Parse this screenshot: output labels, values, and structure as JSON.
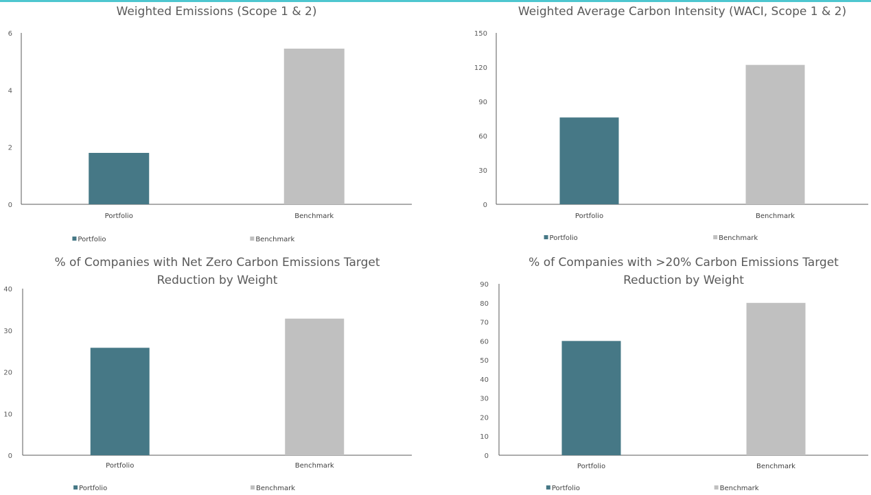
{
  "colors": {
    "portfolio": "#467886",
    "benchmark": "#c0c0c0",
    "accent": "#4ec6cf"
  },
  "chart_data": [
    {
      "type": "bar",
      "title_lines": [
        "Weighted Emissions (Scope 1 & 2)"
      ],
      "categories": [
        "Portfolio",
        "Benchmark"
      ],
      "values": [
        1.8,
        5.45
      ],
      "yticks": [
        "0",
        "2",
        "4",
        "6"
      ],
      "ylim": [
        0,
        6
      ],
      "legend": [
        "Portfolio",
        "Benchmark"
      ]
    },
    {
      "type": "bar",
      "title_lines": [
        "Weighted Average Carbon Intensity (WACI, Scope 1 & 2)"
      ],
      "categories": [
        "Portfolio",
        "Benchmark"
      ],
      "values": [
        76,
        122
      ],
      "yticks": [
        "0",
        "30",
        "60",
        "90",
        "120",
        "150"
      ],
      "ylim": [
        0,
        150
      ],
      "legend": [
        "Portfolio",
        "Benchmark"
      ]
    },
    {
      "type": "bar",
      "title_lines": [
        "% of Companies with Net Zero Carbon Emissions Target",
        "Reduction by Weight"
      ],
      "categories": [
        "Portfolio",
        "Benchmark"
      ],
      "values": [
        25.8,
        32.8
      ],
      "yticks": [
        "0",
        "10",
        "20",
        "30",
        "40"
      ],
      "ylim": [
        0,
        40
      ],
      "legend": [
        "Portfolio",
        "Benchmark"
      ]
    },
    {
      "type": "bar",
      "title_lines": [
        "% of Companies with >20% Carbon Emissions Target",
        "Reduction by Weight"
      ],
      "categories": [
        "Portfolio",
        "Benchmark"
      ],
      "values": [
        60,
        80
      ],
      "yticks": [
        "0",
        "10",
        "20",
        "30",
        "40",
        "50",
        "60",
        "70",
        "80",
        "90"
      ],
      "ylim": [
        0,
        90
      ],
      "legend": [
        "Portfolio",
        "Benchmark"
      ]
    }
  ]
}
